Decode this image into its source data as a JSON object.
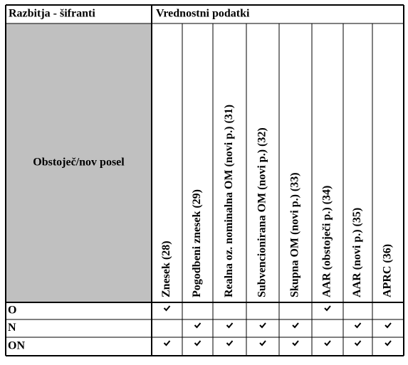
{
  "table": {
    "header": {
      "group_left": "Razbitja - šifranti",
      "group_right": "Vrednostni podatki"
    },
    "row_header": "Obstoječ/nov posel",
    "columns": [
      "Znesek (28)",
      "Pogodbeni znesek (29)",
      "Realna oz. nominalna OM (novi p.) (31)",
      "Subvencionirana OM (novi p.) (32)",
      "Skupna OM (novi p.) (33)",
      "AAR (obstoječi p.) (34)",
      "AAR (novi p.) (35)",
      "APRC (36)"
    ],
    "rows": [
      {
        "label": "O",
        "checks": [
          true,
          false,
          false,
          false,
          false,
          true,
          false,
          false
        ]
      },
      {
        "label": "N",
        "checks": [
          false,
          true,
          true,
          true,
          true,
          false,
          true,
          true
        ]
      },
      {
        "label": "ON",
        "checks": [
          true,
          true,
          true,
          true,
          true,
          true,
          true,
          true
        ]
      }
    ]
  }
}
